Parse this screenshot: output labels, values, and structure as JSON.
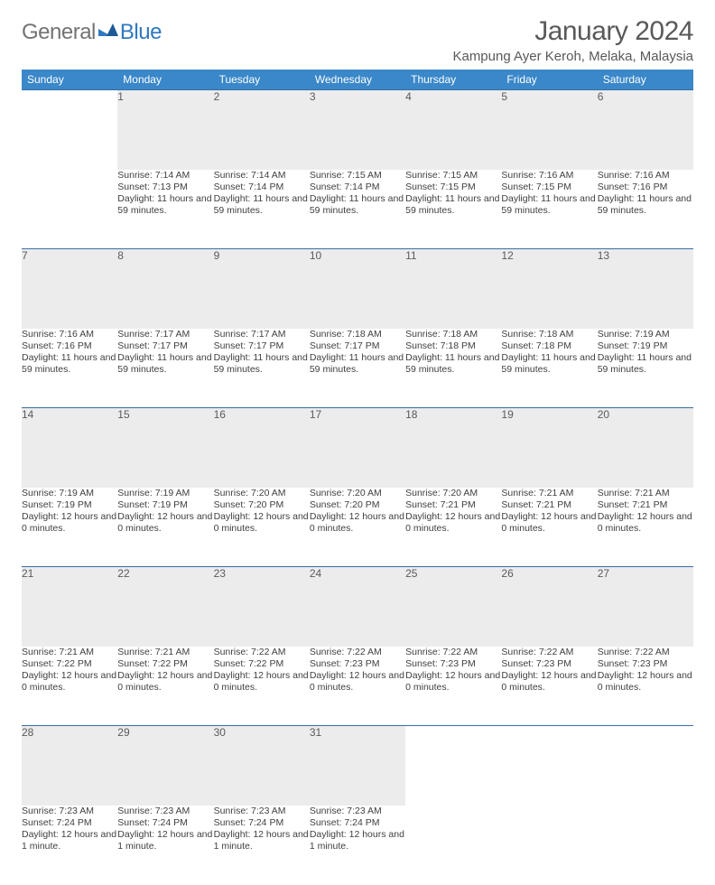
{
  "brand": {
    "general": "General",
    "blue": "Blue"
  },
  "title": "January 2024",
  "location": "Kampung Ayer Keroh, Melaka, Malaysia",
  "colors": {
    "header_bg": "#3a87c9",
    "header_fg": "#ffffff",
    "daynum_bg": "#ececec",
    "rule": "#3a6ea5",
    "text": "#404040",
    "title_fg": "#595959",
    "logo_gray": "#737373",
    "logo_blue": "#2f78bf"
  },
  "weekdays": [
    "Sunday",
    "Monday",
    "Tuesday",
    "Wednesday",
    "Thursday",
    "Friday",
    "Saturday"
  ],
  "weeks": [
    [
      null,
      {
        "n": "1",
        "sr": "7:14 AM",
        "ss": "7:13 PM",
        "dl": "11 hours and 59 minutes."
      },
      {
        "n": "2",
        "sr": "7:14 AM",
        "ss": "7:14 PM",
        "dl": "11 hours and 59 minutes."
      },
      {
        "n": "3",
        "sr": "7:15 AM",
        "ss": "7:14 PM",
        "dl": "11 hours and 59 minutes."
      },
      {
        "n": "4",
        "sr": "7:15 AM",
        "ss": "7:15 PM",
        "dl": "11 hours and 59 minutes."
      },
      {
        "n": "5",
        "sr": "7:16 AM",
        "ss": "7:15 PM",
        "dl": "11 hours and 59 minutes."
      },
      {
        "n": "6",
        "sr": "7:16 AM",
        "ss": "7:16 PM",
        "dl": "11 hours and 59 minutes."
      }
    ],
    [
      {
        "n": "7",
        "sr": "7:16 AM",
        "ss": "7:16 PM",
        "dl": "11 hours and 59 minutes."
      },
      {
        "n": "8",
        "sr": "7:17 AM",
        "ss": "7:17 PM",
        "dl": "11 hours and 59 minutes."
      },
      {
        "n": "9",
        "sr": "7:17 AM",
        "ss": "7:17 PM",
        "dl": "11 hours and 59 minutes."
      },
      {
        "n": "10",
        "sr": "7:18 AM",
        "ss": "7:17 PM",
        "dl": "11 hours and 59 minutes."
      },
      {
        "n": "11",
        "sr": "7:18 AM",
        "ss": "7:18 PM",
        "dl": "11 hours and 59 minutes."
      },
      {
        "n": "12",
        "sr": "7:18 AM",
        "ss": "7:18 PM",
        "dl": "11 hours and 59 minutes."
      },
      {
        "n": "13",
        "sr": "7:19 AM",
        "ss": "7:19 PM",
        "dl": "11 hours and 59 minutes."
      }
    ],
    [
      {
        "n": "14",
        "sr": "7:19 AM",
        "ss": "7:19 PM",
        "dl": "12 hours and 0 minutes."
      },
      {
        "n": "15",
        "sr": "7:19 AM",
        "ss": "7:19 PM",
        "dl": "12 hours and 0 minutes."
      },
      {
        "n": "16",
        "sr": "7:20 AM",
        "ss": "7:20 PM",
        "dl": "12 hours and 0 minutes."
      },
      {
        "n": "17",
        "sr": "7:20 AM",
        "ss": "7:20 PM",
        "dl": "12 hours and 0 minutes."
      },
      {
        "n": "18",
        "sr": "7:20 AM",
        "ss": "7:21 PM",
        "dl": "12 hours and 0 minutes."
      },
      {
        "n": "19",
        "sr": "7:21 AM",
        "ss": "7:21 PM",
        "dl": "12 hours and 0 minutes."
      },
      {
        "n": "20",
        "sr": "7:21 AM",
        "ss": "7:21 PM",
        "dl": "12 hours and 0 minutes."
      }
    ],
    [
      {
        "n": "21",
        "sr": "7:21 AM",
        "ss": "7:22 PM",
        "dl": "12 hours and 0 minutes."
      },
      {
        "n": "22",
        "sr": "7:21 AM",
        "ss": "7:22 PM",
        "dl": "12 hours and 0 minutes."
      },
      {
        "n": "23",
        "sr": "7:22 AM",
        "ss": "7:22 PM",
        "dl": "12 hours and 0 minutes."
      },
      {
        "n": "24",
        "sr": "7:22 AM",
        "ss": "7:23 PM",
        "dl": "12 hours and 0 minutes."
      },
      {
        "n": "25",
        "sr": "7:22 AM",
        "ss": "7:23 PM",
        "dl": "12 hours and 0 minutes."
      },
      {
        "n": "26",
        "sr": "7:22 AM",
        "ss": "7:23 PM",
        "dl": "12 hours and 0 minutes."
      },
      {
        "n": "27",
        "sr": "7:22 AM",
        "ss": "7:23 PM",
        "dl": "12 hours and 0 minutes."
      }
    ],
    [
      {
        "n": "28",
        "sr": "7:23 AM",
        "ss": "7:24 PM",
        "dl": "12 hours and 1 minute."
      },
      {
        "n": "29",
        "sr": "7:23 AM",
        "ss": "7:24 PM",
        "dl": "12 hours and 1 minute."
      },
      {
        "n": "30",
        "sr": "7:23 AM",
        "ss": "7:24 PM",
        "dl": "12 hours and 1 minute."
      },
      {
        "n": "31",
        "sr": "7:23 AM",
        "ss": "7:24 PM",
        "dl": "12 hours and 1 minute."
      },
      null,
      null,
      null
    ]
  ],
  "labels": {
    "sunrise": "Sunrise: ",
    "sunset": "Sunset: ",
    "daylight": "Daylight: "
  }
}
